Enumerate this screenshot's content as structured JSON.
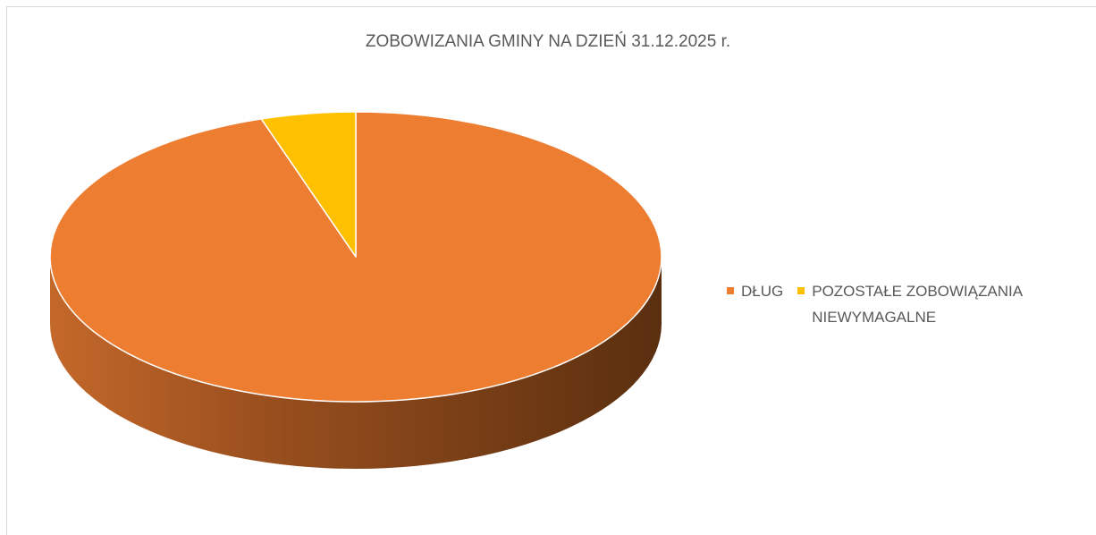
{
  "chart_data": {
    "type": "pie",
    "title": "ZOBOWIZANIA GMINY NA DZIEŃ 31.12.2025 r.",
    "categories": [
      "DŁUG",
      "POZOSTAŁE ZOBOWIĄZANIA NIEWYMAGALNE"
    ],
    "values": [
      95,
      5
    ],
    "colors": [
      "#ed7d31",
      "#ffc000"
    ],
    "legend": "right"
  }
}
